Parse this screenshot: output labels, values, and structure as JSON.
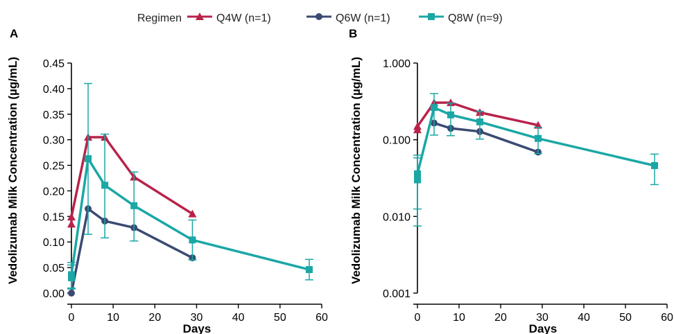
{
  "legend": {
    "title": "Regimen",
    "items": [
      {
        "label": "Q4W (n=1)",
        "marker": "triangle",
        "color": "#b8234a"
      },
      {
        "label": "Q6W (n=1)",
        "marker": "circle",
        "color": "#3a4a72"
      },
      {
        "label": "Q8W (n=9)",
        "marker": "square",
        "color": "#1aa7a5"
      }
    ]
  },
  "chart_data": [
    {
      "type": "line",
      "panel": "A",
      "xlabel": "Days",
      "ylabel": "Vedolizumab Milk Concentration (µg/mL)",
      "xlim": [
        0,
        60
      ],
      "ylim": [
        0,
        0.45
      ],
      "yscale": "linear",
      "xticks": [
        0,
        10,
        20,
        30,
        40,
        50,
        60
      ],
      "xtick_labels": [
        "0",
        "10",
        "20",
        "30",
        "40",
        "50",
        "60"
      ],
      "yticks": [
        0,
        0.05,
        0.1,
        0.15,
        0.2,
        0.25,
        0.3,
        0.35,
        0.4,
        0.45
      ],
      "ytick_labels": [
        "0.00",
        "0.05",
        "0.10",
        "0.15",
        "0.20",
        "0.25",
        "0.30",
        "0.35",
        "0.40",
        "0.45"
      ],
      "series": [
        {
          "name": "Q4W (n=1)",
          "color": "#b8234a",
          "marker": "triangle",
          "x": [
            0,
            0,
            4,
            8,
            15,
            29
          ],
          "y": [
            0.135,
            0.149,
            0.305,
            0.305,
            0.227,
            0.155
          ]
        },
        {
          "name": "Q6W (n=1)",
          "color": "#3a4a72",
          "marker": "circle",
          "x": [
            0,
            4,
            8,
            15,
            29
          ],
          "y": [
            0.0,
            0.165,
            0.141,
            0.128,
            0.069
          ]
        },
        {
          "name": "Q8W (n=9)",
          "color": "#1aa7a5",
          "marker": "square",
          "x": [
            0,
            0,
            4,
            8,
            15,
            29,
            57
          ],
          "y": [
            0.03,
            0.036,
            0.263,
            0.211,
            0.171,
            0.104,
            0.046
          ],
          "err_low": [
            0.01,
            0.008,
            0.115,
            0.108,
            0.102,
            0.065,
            0.026
          ],
          "err_high": [
            0.06,
            0.055,
            0.41,
            0.311,
            0.237,
            0.143,
            0.066
          ]
        }
      ]
    },
    {
      "type": "line",
      "panel": "B",
      "xlabel": "Days",
      "ylabel": "Vedolizumab Milk Concentration (µg/mL)",
      "xlim": [
        0,
        60
      ],
      "ylim": [
        0.001,
        1.0
      ],
      "yscale": "log",
      "xticks": [
        0,
        10,
        20,
        30,
        40,
        50,
        60
      ],
      "xtick_labels": [
        "0",
        "10",
        "20",
        "30",
        "40",
        "50",
        "60"
      ],
      "yticks": [
        0.001,
        0.01,
        0.1,
        1.0
      ],
      "ytick_labels": [
        "0.001",
        "0.010",
        "0.100",
        "1.000"
      ],
      "series": [
        {
          "name": "Q4W (n=1)",
          "color": "#b8234a",
          "marker": "triangle",
          "x": [
            0,
            0,
            4,
            8,
            15,
            29
          ],
          "y": [
            0.135,
            0.149,
            0.305,
            0.305,
            0.227,
            0.155
          ]
        },
        {
          "name": "Q6W (n=1)",
          "color": "#3a4a72",
          "marker": "circle",
          "x": [
            4,
            8,
            15,
            29
          ],
          "y": [
            0.165,
            0.141,
            0.128,
            0.069
          ]
        },
        {
          "name": "Q8W (n=9)",
          "color": "#1aa7a5",
          "marker": "square",
          "x": [
            0,
            0,
            4,
            8,
            15,
            29,
            57
          ],
          "y": [
            0.03,
            0.036,
            0.263,
            0.211,
            0.171,
            0.104,
            0.046
          ],
          "err_low": [
            0.0075,
            0.0125,
            0.115,
            0.113,
            0.102,
            0.066,
            0.026
          ],
          "err_high": [
            0.058,
            0.063,
            0.4,
            0.3,
            0.235,
            0.145,
            0.065
          ]
        }
      ]
    }
  ]
}
